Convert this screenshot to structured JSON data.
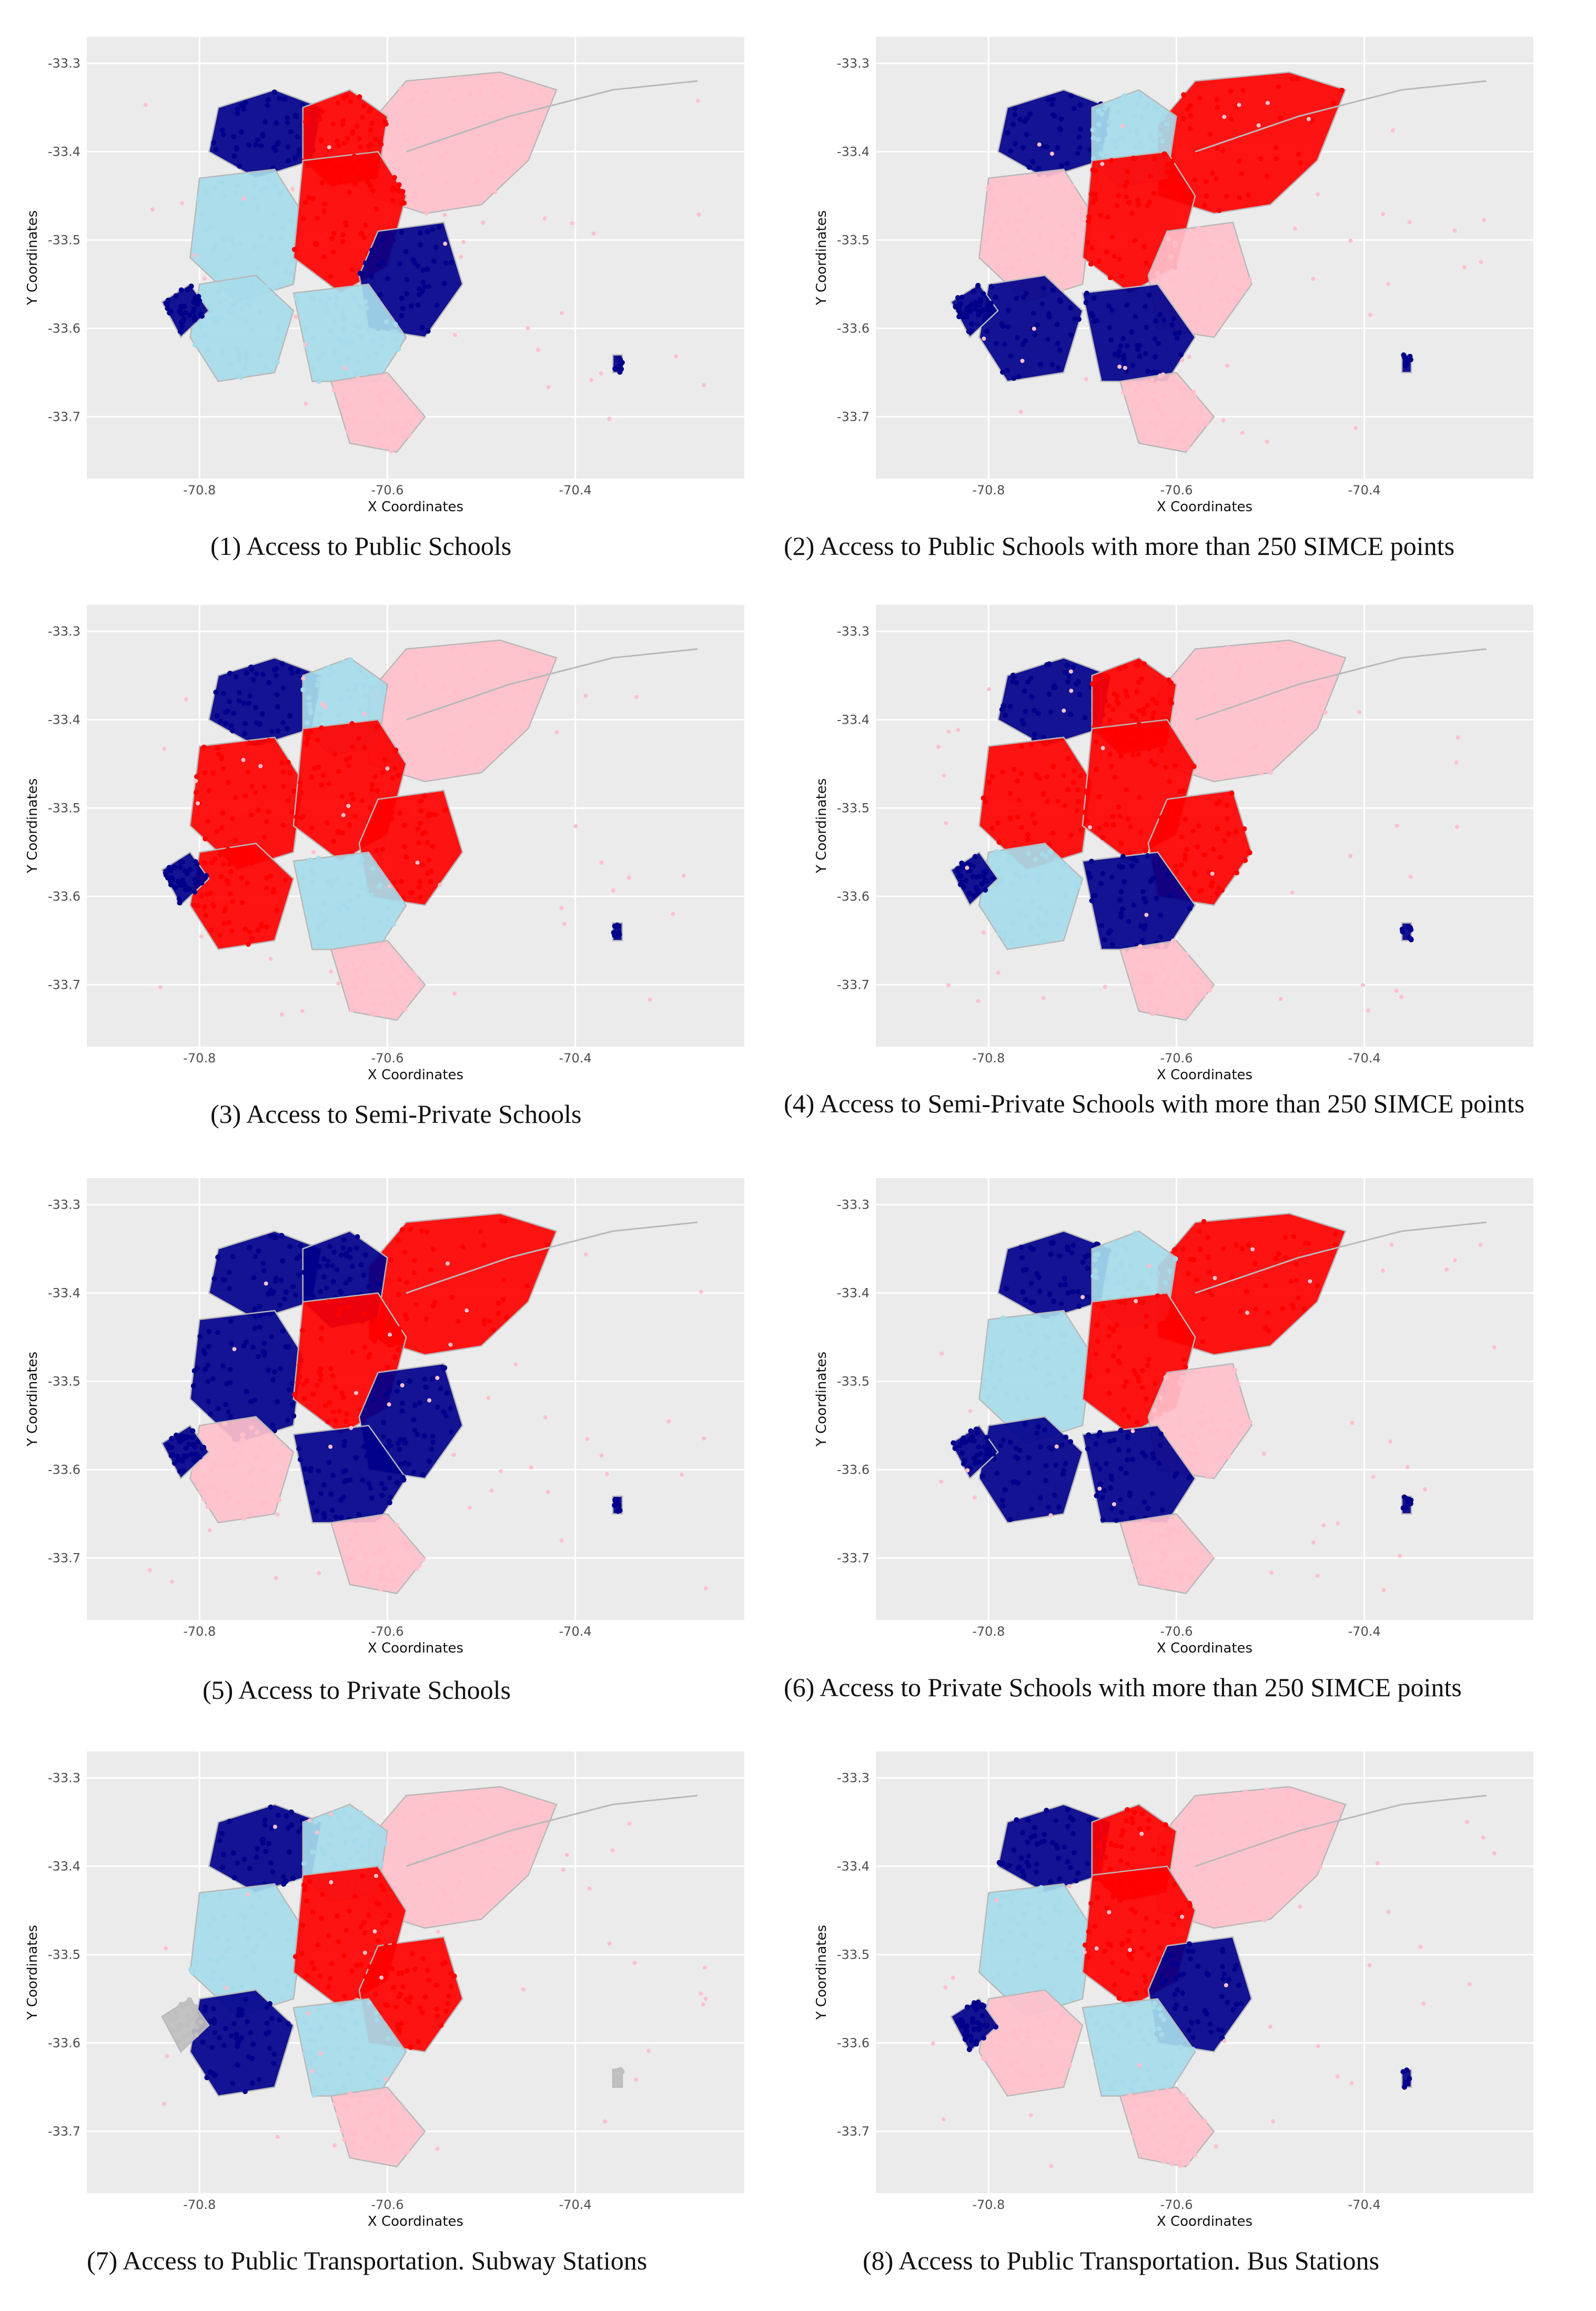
{
  "axes": {
    "x_label": "X Coordinates",
    "y_label": "Y Coordinates",
    "x_ticks": [
      "-70.8",
      "-70.6",
      "-70.4"
    ],
    "x_values": [
      -70.8,
      -70.6,
      -70.4
    ],
    "y_ticks": [
      "-33.3",
      "-33.4",
      "-33.5",
      "-33.6",
      "-33.7"
    ],
    "y_values": [
      -33.3,
      -33.4,
      -33.5,
      -33.6,
      -33.7
    ],
    "x_range": [
      -70.92,
      -70.22
    ],
    "y_range": [
      -33.27,
      -33.77
    ]
  },
  "colors": {
    "plot_bg": "#ebebeb",
    "grid": "#ffffff",
    "boundary": "#b8b8b8",
    "red": "#ff0000",
    "navy": "#00008b",
    "lightblue": "#a6dbea",
    "pink": "#ffc0cb",
    "grey": "#bfbfbf"
  },
  "panels": [
    {
      "caption": "(1) Access to Public Schools",
      "zones": {
        "center": "red",
        "north_center": "red",
        "northeast": "pink",
        "west": "lightblue",
        "northwest": "navy",
        "southwest": "lightblue",
        "southeast": "navy",
        "south": "lightblue",
        "far_west": "navy",
        "south_tip": "pink",
        "far_east": "navy"
      }
    },
    {
      "caption": "(2) Access to Public Schools with more than 250 SIMCE points",
      "zones": {
        "center": "red",
        "north_center": "lightblue",
        "northeast": "red",
        "west": "pink",
        "northwest": "navy",
        "southwest": "navy",
        "southeast": "pink",
        "south": "navy",
        "far_west": "navy",
        "south_tip": "pink",
        "far_east": "navy"
      }
    },
    {
      "caption": "(3) Access to Semi-Private Schools",
      "zones": {
        "center": "red",
        "north_center": "lightblue",
        "northeast": "pink",
        "west": "red",
        "northwest": "navy",
        "southwest": "red",
        "southeast": "red",
        "south": "lightblue",
        "far_west": "navy",
        "south_tip": "pink",
        "far_east": "navy"
      }
    },
    {
      "caption": "(4) Access to Semi-Private Schools with more than 250 SIMCE points",
      "zones": {
        "center": "red",
        "north_center": "red",
        "northeast": "pink",
        "west": "red",
        "northwest": "navy",
        "southwest": "lightblue",
        "southeast": "red",
        "south": "navy",
        "far_west": "navy",
        "south_tip": "pink",
        "far_east": "navy"
      }
    },
    {
      "caption": "(5) Access to Private Schools",
      "zones": {
        "center": "red",
        "north_center": "navy",
        "northeast": "red",
        "west": "navy",
        "northwest": "navy",
        "southwest": "pink",
        "southeast": "navy",
        "south": "navy",
        "far_west": "navy",
        "south_tip": "pink",
        "far_east": "navy"
      }
    },
    {
      "caption": "(6) Access to Private Schools with more than 250 SIMCE points",
      "zones": {
        "center": "red",
        "north_center": "lightblue",
        "northeast": "red",
        "west": "lightblue",
        "northwest": "navy",
        "southwest": "navy",
        "southeast": "pink",
        "south": "navy",
        "far_west": "navy",
        "south_tip": "pink",
        "far_east": "navy"
      }
    },
    {
      "caption": "(7) Access to Public Transportation. Subway Stations",
      "zones": {
        "center": "red",
        "north_center": "lightblue",
        "northeast": "pink",
        "west": "lightblue",
        "northwest": "navy",
        "southwest": "navy",
        "southeast": "red",
        "south": "lightblue",
        "far_west": "grey",
        "south_tip": "pink",
        "far_east": "grey"
      }
    },
    {
      "caption": "(8) Access to Public Transportation. Bus Stations",
      "zones": {
        "center": "red",
        "north_center": "red",
        "northeast": "pink",
        "west": "lightblue",
        "northwest": "navy",
        "southwest": "pink",
        "southeast": "navy",
        "south": "lightblue",
        "far_west": "navy",
        "south_tip": "pink",
        "far_east": "navy"
      }
    }
  ]
}
